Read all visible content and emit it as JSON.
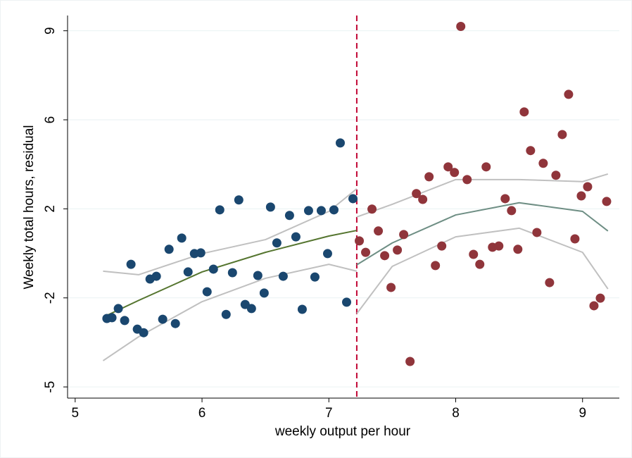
{
  "chart_data": {
    "type": "scatter",
    "xlabel": "weekly output per hour",
    "ylabel": "Weekly total hours, residual",
    "xlim": [
      4.94,
      9.29
    ],
    "ylim": [
      -5.44,
      9.6
    ],
    "xticks": [
      5,
      6,
      7,
      8,
      9
    ],
    "yticks": [
      -5,
      {
        "value": -1.5,
        "label": "-2"
      },
      2,
      {
        "value": 5.5,
        "label": "6"
      },
      9
    ],
    "grid": true,
    "cutoff": 7.22,
    "cutoff_color": "#c10534",
    "series": [
      {
        "type": "scatter",
        "color": "#1a476f",
        "x": [
          5.25,
          5.29,
          5.34,
          5.39,
          5.44,
          5.49,
          5.54,
          5.59,
          5.64,
          5.69,
          5.74,
          5.79,
          5.84,
          5.89,
          5.94,
          5.99,
          6.04,
          6.09,
          6.14,
          6.19,
          6.24,
          6.29,
          6.34,
          6.39,
          6.44,
          6.49,
          6.54,
          6.59,
          6.64,
          6.69,
          6.74,
          6.79,
          6.84,
          6.89,
          6.94,
          6.99,
          7.04,
          7.09,
          7.14,
          7.19
        ],
        "values": [
          -2.31,
          -2.28,
          -1.92,
          -2.39,
          -0.18,
          -2.73,
          -2.87,
          -0.76,
          -0.65,
          -2.34,
          0.41,
          -2.51,
          0.85,
          -0.48,
          0.24,
          0.27,
          -1.26,
          -0.37,
          1.96,
          -2.15,
          -0.51,
          2.35,
          -1.76,
          -1.92,
          -0.62,
          -1.31,
          2.07,
          0.66,
          -0.65,
          1.74,
          0.9,
          -1.95,
          1.93,
          -0.68,
          1.93,
          0.24,
          1.96,
          4.59,
          -1.67,
          2.4
        ]
      },
      {
        "type": "scatter",
        "color": "#90353b",
        "x": [
          7.24,
          7.29,
          7.34,
          7.39,
          7.44,
          7.49,
          7.54,
          7.59,
          7.64,
          7.69,
          7.74,
          7.79,
          7.84,
          7.89,
          7.94,
          7.99,
          8.04,
          8.09,
          8.14,
          8.19,
          8.24,
          8.29,
          8.34,
          8.39,
          8.44,
          8.49,
          8.54,
          8.59,
          8.64,
          8.69,
          8.74,
          8.79,
          8.84,
          8.89,
          8.94,
          8.99,
          9.04,
          9.09,
          9.14,
          9.19
        ],
        "values": [
          0.74,
          0.29,
          1.99,
          1.13,
          0.16,
          -1.09,
          0.38,
          0.99,
          -4.0,
          2.6,
          2.37,
          3.26,
          -0.23,
          0.54,
          3.65,
          3.43,
          9.17,
          3.15,
          0.21,
          -0.18,
          3.65,
          0.49,
          0.54,
          2.4,
          1.93,
          0.41,
          5.81,
          4.29,
          1.07,
          3.79,
          -0.9,
          3.32,
          4.92,
          6.5,
          0.82,
          2.51,
          2.87,
          -1.81,
          -1.51,
          2.29
        ]
      },
      {
        "type": "line",
        "color": "#c0c0c0",
        "x": [
          5.22,
          5.5,
          6,
          6.5,
          7,
          7.22
        ],
        "values": [
          -0.45,
          -0.59,
          0.24,
          0.79,
          1.9,
          2.79
        ]
      },
      {
        "type": "line",
        "color": "#c0c0c0",
        "x": [
          5.22,
          5.5,
          6,
          6.5,
          7,
          7.22
        ],
        "values": [
          -3.97,
          -3.03,
          -1.65,
          -0.73,
          -0.18,
          -0.45
        ]
      },
      {
        "type": "line",
        "color": "#55752f",
        "x": [
          5.22,
          5.5,
          6,
          6.5,
          7,
          7.22
        ],
        "values": [
          -2.26,
          -1.6,
          -0.48,
          0.29,
          0.93,
          1.15
        ]
      },
      {
        "type": "line",
        "color": "#c0c0c0",
        "x": [
          7.22,
          7.5,
          8,
          8.5,
          9,
          9.2
        ],
        "values": [
          1.68,
          2.18,
          3.15,
          3.15,
          3.07,
          3.37
        ]
      },
      {
        "type": "line",
        "color": "#c0c0c0",
        "x": [
          7.22,
          7.5,
          8,
          8.5,
          9,
          9.2
        ],
        "values": [
          -2.12,
          -0.26,
          0.9,
          1.24,
          0.29,
          -1.15
        ]
      },
      {
        "type": "line",
        "color": "#6e8e84",
        "x": [
          7.22,
          7.5,
          8,
          8.5,
          9,
          9.2
        ],
        "values": [
          -0.2,
          0.66,
          1.76,
          2.24,
          1.9,
          1.13
        ]
      }
    ]
  }
}
